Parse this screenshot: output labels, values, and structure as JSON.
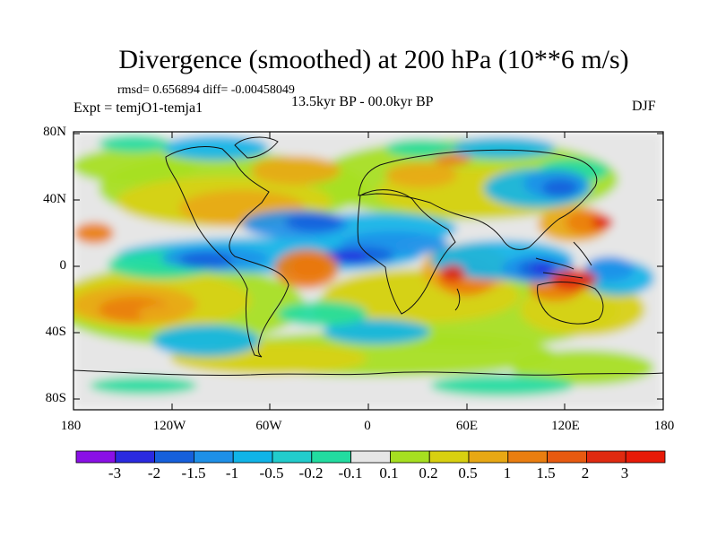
{
  "title": "Divergence (smoothed) at 200 hPa (10**6 m/s)",
  "stats": "rmsd= 0.656894 diff= -0.00458049",
  "experiment": "Expt = temjO1-temja1",
  "period": "13.5kyr BP - 00.0kyr BP",
  "season": "DJF",
  "y_ticks": [
    "80N",
    "40N",
    "0",
    "40S",
    "80S"
  ],
  "x_ticks": [
    "180",
    "120W",
    "60W",
    "0",
    "60E",
    "120E",
    "180"
  ],
  "colorbar": {
    "labels": [
      "-3",
      "-2",
      "-1.5",
      "-1",
      "-0.5",
      "-0.2",
      "-0.1",
      "0.1",
      "0.2",
      "0.5",
      "1",
      "1.5",
      "2",
      "3"
    ],
    "colors": [
      "#8a10e6",
      "#2a2ae0",
      "#1660dc",
      "#1e90e8",
      "#10b4e8",
      "#22cccc",
      "#22dca0",
      "#e6e6e6",
      "#a6e020",
      "#d8d010",
      "#e8a814",
      "#ea7e10",
      "#e85a10",
      "#e02a10",
      "#e81a08"
    ]
  },
  "map_colors": {
    "neutral": "#e6e6e6",
    "green": "#a6e020",
    "olive": "#d8d010",
    "amber": "#e8a814",
    "orange": "#ea7e10",
    "red": "#e02a10",
    "teal": "#22dca0",
    "cyan": "#10b4e8",
    "sky": "#1e90e8",
    "blue": "#1660dc",
    "navy": "#2a2ae0"
  }
}
